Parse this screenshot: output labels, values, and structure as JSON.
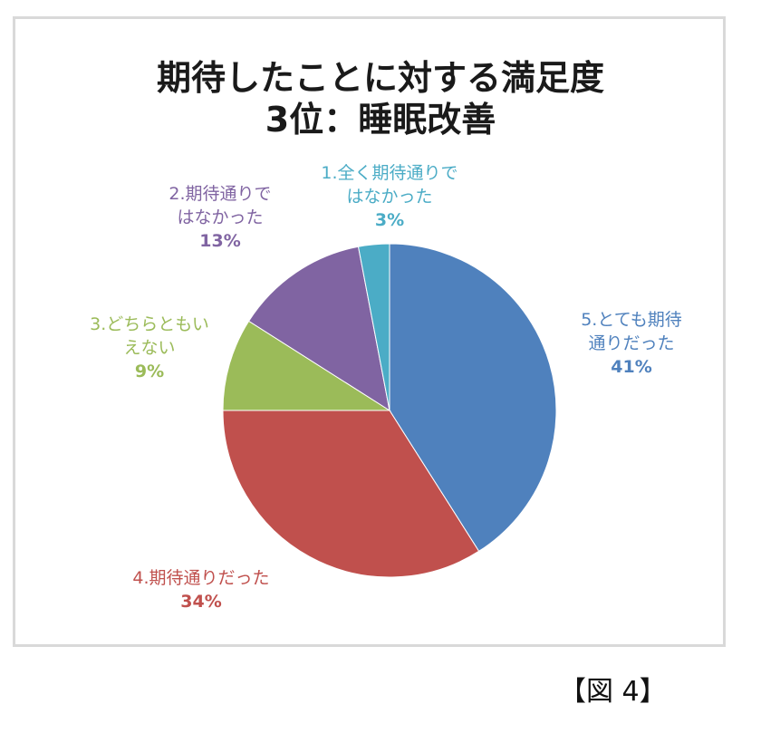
{
  "chart_data": {
    "type": "pie",
    "title": [
      "期待したことに対する満足度",
      "3位：睡眠改善"
    ],
    "start_angle_deg": 0,
    "direction": "clockwise",
    "slices": [
      {
        "label_lines": [
          "5.とても期待",
          "通りだった"
        ],
        "value": 41,
        "value_label": "41%",
        "color": "#4f81bd",
        "text_color": "#4f81bd"
      },
      {
        "label_lines": [
          "4.期待通りだった"
        ],
        "value": 34,
        "value_label": "34%",
        "color": "#c0504d",
        "text_color": "#c0504d"
      },
      {
        "label_lines": [
          "3.どちらともい",
          "えない"
        ],
        "value": 9,
        "value_label": "9%",
        "color": "#9bbb59",
        "text_color": "#9bbb59"
      },
      {
        "label_lines": [
          "2.期待通りで",
          "はなかった"
        ],
        "value": 13,
        "value_label": "13%",
        "color": "#8064a2",
        "text_color": "#8064a2"
      },
      {
        "label_lines": [
          "1.全く期待通りで",
          "はなかった"
        ],
        "value": 3,
        "value_label": "3%",
        "color": "#4bacc6",
        "text_color": "#4bacc6"
      }
    ]
  },
  "caption": "【図 4】"
}
